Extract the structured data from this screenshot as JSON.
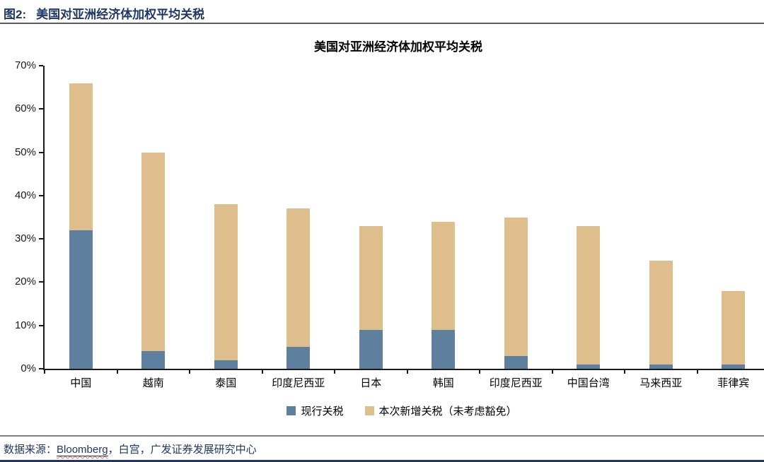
{
  "header": {
    "figure_label": "图2:",
    "title": "美国对亚洲经济体加权平均关税"
  },
  "chart_data": {
    "type": "bar",
    "stacked": true,
    "title": "美国对亚洲经济体加权平均关税",
    "categories": [
      "中国",
      "越南",
      "泰国",
      "印度尼西亚",
      "日本",
      "韩国",
      "印度尼西亚",
      "中国台湾",
      "马来西亚",
      "菲律宾"
    ],
    "series": [
      {
        "name": "现行关税",
        "color": "#5E7F9E",
        "values": [
          32,
          4,
          2,
          5,
          9,
          9,
          3,
          1,
          1,
          1
        ]
      },
      {
        "name": "本次新增关税（未考虑豁免）",
        "color": "#DDBE8C",
        "values": [
          34,
          46,
          36,
          32,
          24,
          25,
          32,
          32,
          24,
          17
        ]
      }
    ],
    "stack_totals": [
      66,
      50,
      38,
      37,
      33,
      34,
      35,
      33,
      25,
      18
    ],
    "xlabel": "",
    "ylabel": "",
    "ylim": [
      0,
      70
    ],
    "ytick_step": 10,
    "ytick_suffix": "%",
    "ytick_labels": [
      "0%",
      "10%",
      "20%",
      "30%",
      "40%",
      "50%",
      "60%",
      "70%"
    ],
    "grid": false,
    "legend_position": "bottom"
  },
  "footer": {
    "source_label": "数据来源：",
    "source_name": "Bloomberg",
    "source_rest": "，白宫，广发证券发展研究中心"
  },
  "colors": {
    "accent_navy": "#1F3864",
    "bar_current": "#5E7F9E",
    "bar_new": "#DDBE8C",
    "axis": "#1a1a1a"
  }
}
